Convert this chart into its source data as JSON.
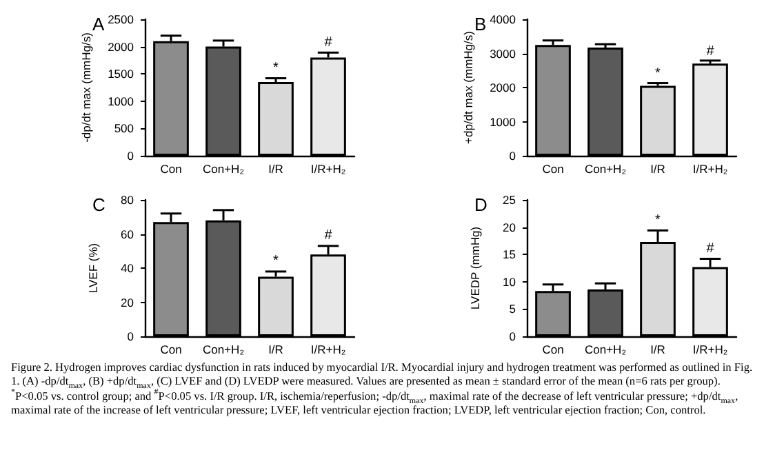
{
  "chart_data": [
    {
      "type": "bar",
      "title": "A",
      "ylabel": "-dp/dt max (mmHg/s)",
      "categories": [
        "Con",
        "Con+H₂",
        "I/R",
        "I/R+H₂"
      ],
      "values": [
        2100,
        2000,
        1350,
        1800
      ],
      "errors": [
        100,
        110,
        70,
        90
      ],
      "colors": [
        "#8c8c8c",
        "#5a5a5a",
        "#d9d9d9",
        "#e8e8e8"
      ],
      "ylim": [
        0,
        2500
      ],
      "yticks": [
        0,
        500,
        1000,
        1500,
        2000,
        2500
      ],
      "grid": false,
      "annotations": [
        {
          "text": "*",
          "x": "I/R",
          "y": 1480
        },
        {
          "text": "#",
          "x": "I/R+H₂",
          "y": 1950
        }
      ]
    },
    {
      "type": "bar",
      "title": "B",
      "ylabel": "+dp/dt max (mmHg/s)",
      "categories": [
        "Con",
        "Con+H₂",
        "I/R",
        "I/R+H₂"
      ],
      "values": [
        3250,
        3170,
        2050,
        2700
      ],
      "errors": [
        130,
        100,
        80,
        90
      ],
      "colors": [
        "#8c8c8c",
        "#5a5a5a",
        "#d9d9d9",
        "#e8e8e8"
      ],
      "ylim": [
        0,
        4000
      ],
      "yticks": [
        0,
        1000,
        2000,
        3000,
        4000
      ],
      "grid": false,
      "annotations": [
        {
          "text": "*",
          "x": "I/R",
          "y": 2200
        },
        {
          "text": "#",
          "x": "I/R+H₂",
          "y": 2850
        }
      ]
    },
    {
      "type": "bar",
      "title": "C",
      "ylabel": "LVEF (%)",
      "categories": [
        "Con",
        "Con+H₂",
        "I/R",
        "I/R+H₂"
      ],
      "values": [
        67,
        68,
        35,
        48
      ],
      "errors": [
        5,
        6,
        3,
        5
      ],
      "colors": [
        "#8c8c8c",
        "#5a5a5a",
        "#d9d9d9",
        "#e8e8e8"
      ],
      "ylim": [
        0,
        80
      ],
      "yticks": [
        0,
        20,
        40,
        60,
        80
      ],
      "grid": false,
      "annotations": [
        {
          "text": "*",
          "x": "I/R",
          "y": 40
        },
        {
          "text": "#",
          "x": "I/R+H₂",
          "y": 55
        }
      ]
    },
    {
      "type": "bar",
      "title": "D",
      "ylabel": "LVEDP (mmHg)",
      "categories": [
        "Con",
        "Con+H₂",
        "I/R",
        "I/R+H₂"
      ],
      "values": [
        8.3,
        8.6,
        17.3,
        12.7
      ],
      "errors": [
        1.2,
        1.1,
        2.1,
        1.5
      ],
      "colors": [
        "#8c8c8c",
        "#5a5a5a",
        "#d9d9d9",
        "#e8e8e8"
      ],
      "ylim": [
        0,
        25
      ],
      "yticks": [
        0,
        5,
        10,
        15,
        20,
        25
      ],
      "grid": false,
      "annotations": [
        {
          "text": "*",
          "x": "I/R",
          "y": 20
        },
        {
          "text": "#",
          "x": "I/R+H₂",
          "y": 14.8
        },
        "Figure 2. Hydrogen improves cardiac dysfunction in rats induced by myocardial I/R. Myocardial injury and hydrogen treatment was performed as outlined in Fig. 1. (A) -dp/dt$_{max}$, (B) +dp/dt$_{max}$, (C) LVEF and (D) LVEDP were measured. Values are presented as mean ± standard error of the mean (n=6 rats per group). $^{*}$P<0.05 vs. control group; and $^{#}$P<0.05 vs. I/R group. I/R, ischemia/reperfusion; -dp/dt$_{max}$, maximal rate of the decrease of left ventricular pressure; +dp/dt$_{max}$, maximal rate of the increase of left ventricular pressure; LVEF, left ventricular ejection fraction; LVEDP, left ventricular ejection fraction; Con, control."
      ]
    }
  ]
}
